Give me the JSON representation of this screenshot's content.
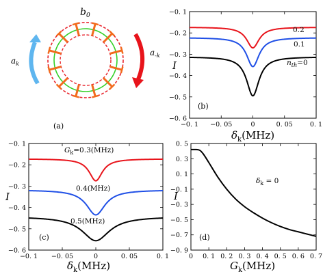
{
  "figure": {
    "panel_a": {
      "tag": "(a)",
      "mode_b0": "b",
      "mode_b0_sub": "0",
      "mode_ak": "a",
      "mode_ak_sub": "k",
      "mode_amk": "a",
      "mode_amk_sub": "-k",
      "colors": {
        "ring_dashed": "#e8222b",
        "ring_inner": "#35d12a",
        "spokes": "#f26b1d",
        "arrow_left": "#5fb6ef",
        "arrow_right": "#e8141b"
      }
    }
  },
  "chart_data": [
    {
      "id": "b",
      "type": "line",
      "panel_tag": "(b)",
      "ylabel": "I",
      "xlabel_main": "δ",
      "xlabel_sub": "k",
      "xlabel_unit": "(MHz)",
      "xlim": [
        -0.1,
        0.1
      ],
      "ylim": [
        -0.6,
        -0.1
      ],
      "xticks": [
        -0.1,
        -0.05,
        0,
        0.05,
        0.1
      ],
      "xtick_labels": [
        "−0. 1",
        "−0. 05",
        "0",
        "0. 05",
        "0. 1"
      ],
      "yticks": [
        -0.6,
        -0.5,
        -0.4,
        -0.3,
        -0.2,
        -0.1
      ],
      "ytick_labels": [
        "−0. 6",
        "−0. 5",
        "−0. 4",
        "−0. 3",
        "−0. 2",
        "−0. 1"
      ],
      "series": [
        {
          "name": "0.2",
          "color": "#e8141b",
          "base": -0.173,
          "depth": 0.097,
          "width": 0.012
        },
        {
          "name": "0.1",
          "color": "#1f4fe6",
          "base": -0.222,
          "depth": 0.136,
          "width": 0.012
        },
        {
          "name": "0",
          "color": "#000000",
          "base": -0.312,
          "depth": 0.183,
          "width": 0.012
        }
      ],
      "labels": {
        "s1": "0.2",
        "s2": "0.1",
        "s3_prefix": "n",
        "s3_sub": "th",
        "s3_suffix": "=0"
      }
    },
    {
      "id": "c",
      "type": "line",
      "panel_tag": "(c)",
      "ylabel": "I",
      "xlabel_main": "δ",
      "xlabel_sub": "k",
      "xlabel_unit": "(MHz)",
      "xlim": [
        -0.1,
        0.1
      ],
      "ylim": [
        -0.6,
        -0.1
      ],
      "xticks": [
        -0.1,
        -0.05,
        0,
        0.05,
        0.1
      ],
      "xtick_labels": [
        "−0. 1",
        "−0. 05",
        "0",
        "0. 05",
        "0. 1"
      ],
      "yticks": [
        -0.6,
        -0.5,
        -0.4,
        -0.3,
        -0.2,
        -0.1
      ],
      "ytick_labels": [
        "−0. 6",
        "−0. 5",
        "−0. 4",
        "−0. 3",
        "−0. 2",
        "−0. 1"
      ],
      "series": [
        {
          "name": "G_k=0.3(MHz)",
          "color": "#e8141b",
          "base": -0.172,
          "depth": 0.103,
          "width": 0.012
        },
        {
          "name": "0.4(MHz)",
          "color": "#1f4fe6",
          "base": -0.318,
          "depth": 0.117,
          "width": 0.017
        },
        {
          "name": "0.5(MHz)",
          "color": "#000000",
          "base": -0.443,
          "depth": 0.113,
          "width": 0.025
        }
      ],
      "labels": {
        "s1_prefix": "G",
        "s1_sub": "k",
        "s1_suffix": "=0.3(MHz)",
        "s2": "0.4(MHz)",
        "s3": "0.5(MHz)"
      }
    },
    {
      "id": "d",
      "type": "line",
      "panel_tag": "(d)",
      "ylabel": "I",
      "xlabel_main": "G",
      "xlabel_sub": "k",
      "xlabel_unit": "(MHz)",
      "xlim": [
        0,
        0.7
      ],
      "ylim": [
        -0.9,
        0.5
      ],
      "xticks": [
        0,
        0.1,
        0.2,
        0.3,
        0.4,
        0.5,
        0.6,
        0.7
      ],
      "xtick_labels": [
        "0",
        "0. 1",
        "0. 2",
        "0. 3",
        "0. 4",
        "0. 5",
        "0. 6",
        "0. 7"
      ],
      "yticks": [
        -0.9,
        -0.7,
        -0.5,
        -0.3,
        -0.1,
        0.1,
        0.3,
        0.5
      ],
      "ytick_labels": [
        "−0. 9",
        "−0. 7",
        "−0. 5",
        "−0. 3",
        "−0. 1",
        "0. 1",
        "0. 3",
        "0. 5"
      ],
      "x": [
        0,
        0.03,
        0.05,
        0.07,
        0.1,
        0.15,
        0.2,
        0.25,
        0.3,
        0.35,
        0.4,
        0.45,
        0.5,
        0.55,
        0.6,
        0.65,
        0.7
      ],
      "y": [
        0.42,
        0.42,
        0.41,
        0.36,
        0.25,
        0.06,
        -0.1,
        -0.23,
        -0.33,
        -0.41,
        -0.48,
        -0.54,
        -0.59,
        -0.63,
        -0.66,
        -0.69,
        -0.72
      ],
      "color": "#000000",
      "annotation_main": "δ",
      "annotation_sub": "k",
      "annotation_suffix": " = 0"
    }
  ]
}
